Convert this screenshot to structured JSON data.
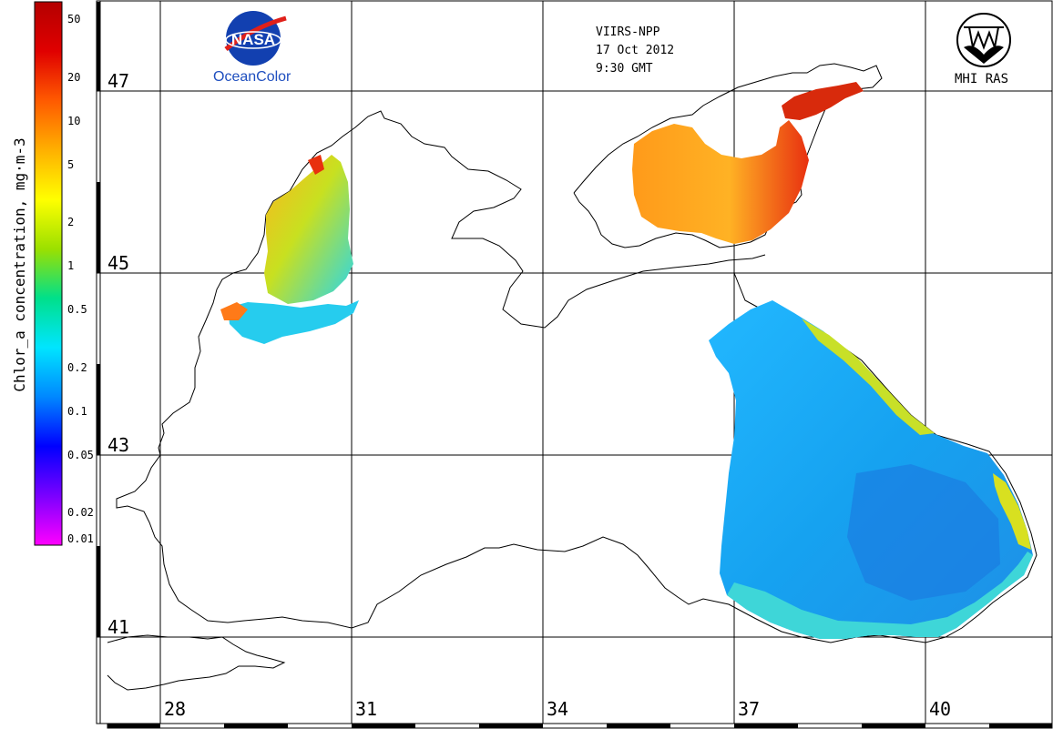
{
  "header": {
    "sensor": "VIIRS-NPP",
    "date": "17 Oct 2012",
    "time": "9:30 GMT"
  },
  "logos": {
    "nasa_name": "NASA",
    "nasa_caption": "OceanColor",
    "mhi_caption": "MHI RAS"
  },
  "colorbar": {
    "title": "Chlor_a concentration, mg·m-3",
    "ticks": [
      {
        "value": "50",
        "frac": 0.032
      },
      {
        "value": "20",
        "frac": 0.139
      },
      {
        "value": "10",
        "frac": 0.219
      },
      {
        "value": "5",
        "frac": 0.3
      },
      {
        "value": "2",
        "frac": 0.406
      },
      {
        "value": "1",
        "frac": 0.486
      },
      {
        "value": "0.5",
        "frac": 0.567
      },
      {
        "value": "0.2",
        "frac": 0.673
      },
      {
        "value": "0.1",
        "frac": 0.753
      },
      {
        "value": "0.05",
        "frac": 0.834
      },
      {
        "value": "0.02",
        "frac": 0.94
      },
      {
        "value": "0.01",
        "frac": 1.0
      }
    ],
    "colors": [
      "#ff00ff",
      "#7a00ff",
      "#0000ff",
      "#0088ff",
      "#00e5ff",
      "#00e08a",
      "#9be000",
      "#ffff00",
      "#ffb000",
      "#ff5a00",
      "#e00000",
      "#b40000"
    ]
  },
  "grid": {
    "latitudes": [
      "47",
      "45",
      "43",
      "41"
    ],
    "longitudes": [
      "28",
      "31",
      "34",
      "37",
      "40"
    ]
  }
}
